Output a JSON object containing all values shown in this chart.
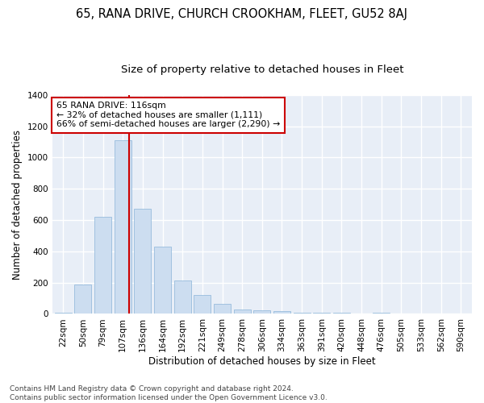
{
  "title": "65, RANA DRIVE, CHURCH CROOKHAM, FLEET, GU52 8AJ",
  "subtitle": "Size of property relative to detached houses in Fleet",
  "xlabel": "Distribution of detached houses by size in Fleet",
  "ylabel": "Number of detached properties",
  "categories": [
    "22sqm",
    "50sqm",
    "79sqm",
    "107sqm",
    "136sqm",
    "164sqm",
    "192sqm",
    "221sqm",
    "249sqm",
    "278sqm",
    "306sqm",
    "334sqm",
    "363sqm",
    "391sqm",
    "420sqm",
    "448sqm",
    "476sqm",
    "505sqm",
    "533sqm",
    "562sqm",
    "590sqm"
  ],
  "values": [
    10,
    190,
    620,
    1110,
    670,
    430,
    215,
    120,
    65,
    30,
    25,
    20,
    10,
    5,
    10,
    2,
    5,
    1,
    0,
    0,
    0
  ],
  "bar_color": "#ccddf0",
  "bar_edge_color": "#8ab4d8",
  "highlight_color": "#cc0000",
  "annotation_text": "65 RANA DRIVE: 116sqm\n← 32% of detached houses are smaller (1,111)\n66% of semi-detached houses are larger (2,290) →",
  "annotation_box_color": "#ffffff",
  "annotation_box_edge": "#cc0000",
  "ylim": [
    0,
    1400
  ],
  "yticks": [
    0,
    200,
    400,
    600,
    800,
    1000,
    1200,
    1400
  ],
  "fig_background": "#ffffff",
  "plot_background": "#e8eef7",
  "grid_color": "#ffffff",
  "footer": "Contains HM Land Registry data © Crown copyright and database right 2024.\nContains public sector information licensed under the Open Government Licence v3.0.",
  "title_fontsize": 10.5,
  "subtitle_fontsize": 9.5,
  "xlabel_fontsize": 8.5,
  "ylabel_fontsize": 8.5,
  "tick_fontsize": 7.5,
  "footer_fontsize": 6.5
}
